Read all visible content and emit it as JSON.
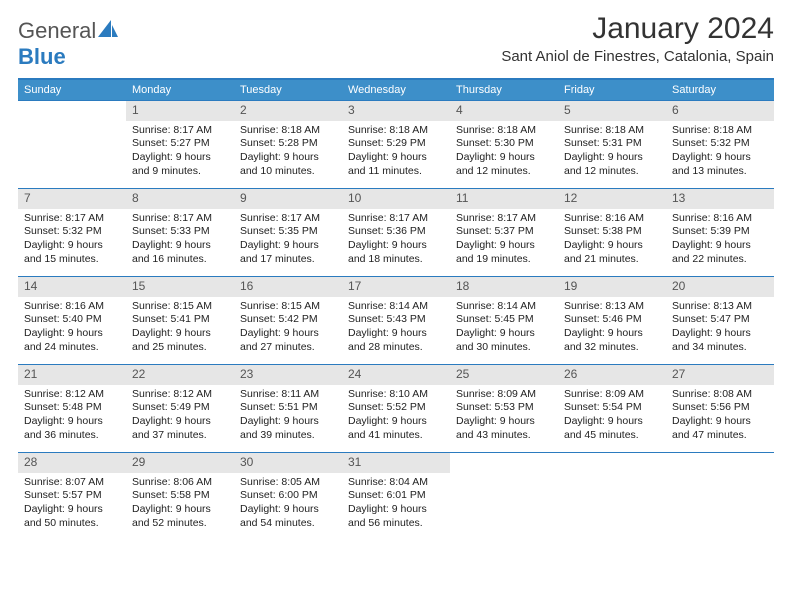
{
  "brand": {
    "text_a": "General",
    "text_b": "Blue"
  },
  "header": {
    "month_title": "January 2024",
    "location": "Sant Aniol de Finestres, Catalonia, Spain"
  },
  "colors": {
    "header_bar": "#3d8fc9",
    "rule": "#2b7bbf",
    "daynum_bg": "#e6e6e6",
    "text": "#333333"
  },
  "day_names": [
    "Sunday",
    "Monday",
    "Tuesday",
    "Wednesday",
    "Thursday",
    "Friday",
    "Saturday"
  ],
  "first_weekday_index": 1,
  "days": [
    {
      "n": 1,
      "sunrise": "8:17 AM",
      "sunset": "5:27 PM",
      "daylight": "9 hours and 9 minutes."
    },
    {
      "n": 2,
      "sunrise": "8:18 AM",
      "sunset": "5:28 PM",
      "daylight": "9 hours and 10 minutes."
    },
    {
      "n": 3,
      "sunrise": "8:18 AM",
      "sunset": "5:29 PM",
      "daylight": "9 hours and 11 minutes."
    },
    {
      "n": 4,
      "sunrise": "8:18 AM",
      "sunset": "5:30 PM",
      "daylight": "9 hours and 12 minutes."
    },
    {
      "n": 5,
      "sunrise": "8:18 AM",
      "sunset": "5:31 PM",
      "daylight": "9 hours and 12 minutes."
    },
    {
      "n": 6,
      "sunrise": "8:18 AM",
      "sunset": "5:32 PM",
      "daylight": "9 hours and 13 minutes."
    },
    {
      "n": 7,
      "sunrise": "8:17 AM",
      "sunset": "5:32 PM",
      "daylight": "9 hours and 15 minutes."
    },
    {
      "n": 8,
      "sunrise": "8:17 AM",
      "sunset": "5:33 PM",
      "daylight": "9 hours and 16 minutes."
    },
    {
      "n": 9,
      "sunrise": "8:17 AM",
      "sunset": "5:35 PM",
      "daylight": "9 hours and 17 minutes."
    },
    {
      "n": 10,
      "sunrise": "8:17 AM",
      "sunset": "5:36 PM",
      "daylight": "9 hours and 18 minutes."
    },
    {
      "n": 11,
      "sunrise": "8:17 AM",
      "sunset": "5:37 PM",
      "daylight": "9 hours and 19 minutes."
    },
    {
      "n": 12,
      "sunrise": "8:16 AM",
      "sunset": "5:38 PM",
      "daylight": "9 hours and 21 minutes."
    },
    {
      "n": 13,
      "sunrise": "8:16 AM",
      "sunset": "5:39 PM",
      "daylight": "9 hours and 22 minutes."
    },
    {
      "n": 14,
      "sunrise": "8:16 AM",
      "sunset": "5:40 PM",
      "daylight": "9 hours and 24 minutes."
    },
    {
      "n": 15,
      "sunrise": "8:15 AM",
      "sunset": "5:41 PM",
      "daylight": "9 hours and 25 minutes."
    },
    {
      "n": 16,
      "sunrise": "8:15 AM",
      "sunset": "5:42 PM",
      "daylight": "9 hours and 27 minutes."
    },
    {
      "n": 17,
      "sunrise": "8:14 AM",
      "sunset": "5:43 PM",
      "daylight": "9 hours and 28 minutes."
    },
    {
      "n": 18,
      "sunrise": "8:14 AM",
      "sunset": "5:45 PM",
      "daylight": "9 hours and 30 minutes."
    },
    {
      "n": 19,
      "sunrise": "8:13 AM",
      "sunset": "5:46 PM",
      "daylight": "9 hours and 32 minutes."
    },
    {
      "n": 20,
      "sunrise": "8:13 AM",
      "sunset": "5:47 PM",
      "daylight": "9 hours and 34 minutes."
    },
    {
      "n": 21,
      "sunrise": "8:12 AM",
      "sunset": "5:48 PM",
      "daylight": "9 hours and 36 minutes."
    },
    {
      "n": 22,
      "sunrise": "8:12 AM",
      "sunset": "5:49 PM",
      "daylight": "9 hours and 37 minutes."
    },
    {
      "n": 23,
      "sunrise": "8:11 AM",
      "sunset": "5:51 PM",
      "daylight": "9 hours and 39 minutes."
    },
    {
      "n": 24,
      "sunrise": "8:10 AM",
      "sunset": "5:52 PM",
      "daylight": "9 hours and 41 minutes."
    },
    {
      "n": 25,
      "sunrise": "8:09 AM",
      "sunset": "5:53 PM",
      "daylight": "9 hours and 43 minutes."
    },
    {
      "n": 26,
      "sunrise": "8:09 AM",
      "sunset": "5:54 PM",
      "daylight": "9 hours and 45 minutes."
    },
    {
      "n": 27,
      "sunrise": "8:08 AM",
      "sunset": "5:56 PM",
      "daylight": "9 hours and 47 minutes."
    },
    {
      "n": 28,
      "sunrise": "8:07 AM",
      "sunset": "5:57 PM",
      "daylight": "9 hours and 50 minutes."
    },
    {
      "n": 29,
      "sunrise": "8:06 AM",
      "sunset": "5:58 PM",
      "daylight": "9 hours and 52 minutes."
    },
    {
      "n": 30,
      "sunrise": "8:05 AM",
      "sunset": "6:00 PM",
      "daylight": "9 hours and 54 minutes."
    },
    {
      "n": 31,
      "sunrise": "8:04 AM",
      "sunset": "6:01 PM",
      "daylight": "9 hours and 56 minutes."
    }
  ],
  "labels": {
    "sunrise": "Sunrise:",
    "sunset": "Sunset:",
    "daylight": "Daylight:"
  }
}
